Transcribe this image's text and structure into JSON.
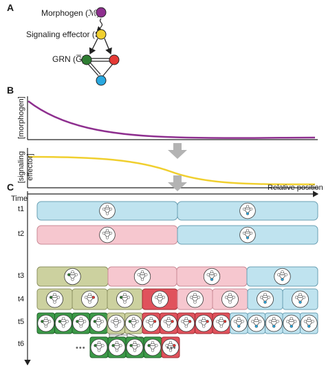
{
  "panelA": {
    "letter": "A",
    "morphogen_label": "Morphogen (ℳ)",
    "effector_label": "Signaling effector (S)",
    "grn_label": "GRN (G̅)"
  },
  "panelB": {
    "letter": "B",
    "morphogen_ylabel": "[morphogen]",
    "effector_ylabel_1": "[signaling",
    "effector_ylabel_2": "effector]"
  },
  "panelC": {
    "letter": "C",
    "time_label": "Time",
    "position_label": "Relative position",
    "ellipsis": "•••",
    "rows": [
      {
        "label": "t1"
      },
      {
        "label": "t2"
      },
      {
        "label": "t3"
      },
      {
        "label": "t4"
      },
      {
        "label": "t5"
      },
      {
        "label": "t6"
      }
    ]
  },
  "colors": {
    "morphogen": "#8e2f8f",
    "effector": "#f0cf2e",
    "grn_green": "#2e7d32",
    "grn_red": "#e53935",
    "grn_blue": "#29a8e0",
    "cell_blue": "#bfe3ef",
    "cell_pink": "#f6c7cf",
    "cell_olive": "#ccd19f",
    "cell_green": "#3c9a48",
    "cell_red": "#e0525c",
    "arrow_gray": "#b3b3b3"
  }
}
